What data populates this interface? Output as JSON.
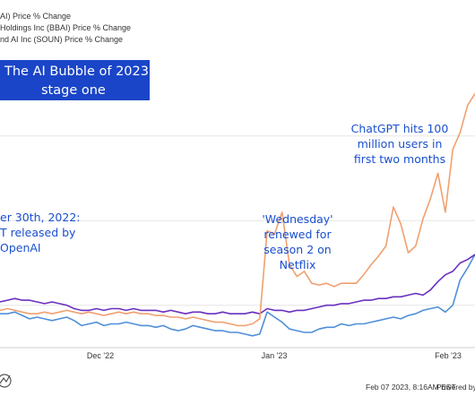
{
  "chart_data": {
    "type": "line",
    "title_box": [
      "The AI Bubble of 2023",
      "stage one"
    ],
    "x_ticks": [
      "Dec '22",
      "Jan '23",
      "Feb '23"
    ],
    "ylim": [
      -25,
      130
    ],
    "grid": "horizontal",
    "series": [
      {
        "name": "AI) Price % Change",
        "color": "#4f8fd8",
        "values": [
          [
            0,
            -5
          ],
          [
            5,
            -5
          ],
          [
            10,
            -4
          ],
          [
            15,
            -6
          ],
          [
            20,
            -8
          ],
          [
            25,
            -7
          ],
          [
            30,
            -8
          ],
          [
            35,
            -9
          ],
          [
            40,
            -8
          ],
          [
            45,
            -7
          ],
          [
            50,
            -9
          ],
          [
            55,
            -12
          ],
          [
            60,
            -11
          ],
          [
            65,
            -10
          ],
          [
            70,
            -12
          ],
          [
            75,
            -11
          ],
          [
            80,
            -11
          ],
          [
            85,
            -10
          ],
          [
            90,
            -11
          ],
          [
            95,
            -12
          ],
          [
            100,
            -12
          ],
          [
            105,
            -13
          ],
          [
            110,
            -12
          ],
          [
            115,
            -14
          ],
          [
            120,
            -15
          ],
          [
            125,
            -14
          ],
          [
            130,
            -12
          ],
          [
            135,
            -13
          ],
          [
            140,
            -14
          ],
          [
            145,
            -15
          ],
          [
            150,
            -15
          ],
          [
            155,
            -16
          ],
          [
            160,
            -16
          ],
          [
            165,
            -17
          ],
          [
            170,
            -18
          ],
          [
            175,
            -17
          ],
          [
            180,
            -4
          ],
          [
            185,
            -7
          ],
          [
            190,
            -10
          ],
          [
            195,
            -14
          ],
          [
            200,
            -15
          ],
          [
            205,
            -16
          ],
          [
            210,
            -16
          ],
          [
            215,
            -14
          ],
          [
            220,
            -13
          ],
          [
            225,
            -13
          ],
          [
            230,
            -11
          ],
          [
            235,
            -12
          ],
          [
            240,
            -11
          ],
          [
            245,
            -11
          ],
          [
            250,
            -10
          ],
          [
            255,
            -9
          ],
          [
            260,
            -8
          ],
          [
            265,
            -7
          ],
          [
            270,
            -8
          ],
          [
            275,
            -6
          ],
          [
            280,
            -5
          ],
          [
            285,
            -3
          ],
          [
            290,
            -2
          ],
          [
            295,
            -1
          ],
          [
            300,
            -4
          ],
          [
            305,
            0
          ],
          [
            310,
            15
          ],
          [
            315,
            22
          ],
          [
            320,
            30
          ]
        ]
      },
      {
        "name": "Holdings Inc (BBAI) Price % Change",
        "color": "#6a2fc0",
        "values": [
          [
            0,
            2
          ],
          [
            5,
            3
          ],
          [
            10,
            4
          ],
          [
            15,
            3
          ],
          [
            20,
            3
          ],
          [
            25,
            2
          ],
          [
            30,
            1
          ],
          [
            35,
            2
          ],
          [
            40,
            1
          ],
          [
            45,
            0
          ],
          [
            50,
            -2
          ],
          [
            55,
            -3
          ],
          [
            60,
            -3
          ],
          [
            65,
            -2
          ],
          [
            70,
            -3
          ],
          [
            75,
            -2
          ],
          [
            80,
            -2
          ],
          [
            85,
            -3
          ],
          [
            90,
            -2
          ],
          [
            95,
            -3
          ],
          [
            100,
            -3
          ],
          [
            105,
            -3
          ],
          [
            110,
            -4
          ],
          [
            115,
            -3
          ],
          [
            120,
            -4
          ],
          [
            125,
            -5
          ],
          [
            130,
            -4
          ],
          [
            135,
            -4
          ],
          [
            140,
            -5
          ],
          [
            145,
            -5
          ],
          [
            150,
            -4
          ],
          [
            155,
            -5
          ],
          [
            160,
            -5
          ],
          [
            165,
            -5
          ],
          [
            170,
            -4
          ],
          [
            175,
            -5
          ],
          [
            180,
            -2
          ],
          [
            185,
            -3
          ],
          [
            190,
            -3
          ],
          [
            195,
            -4
          ],
          [
            200,
            -3
          ],
          [
            205,
            -3
          ],
          [
            210,
            -2
          ],
          [
            215,
            -1
          ],
          [
            220,
            0
          ],
          [
            225,
            0
          ],
          [
            230,
            1
          ],
          [
            235,
            1
          ],
          [
            240,
            2
          ],
          [
            245,
            3
          ],
          [
            250,
            3
          ],
          [
            255,
            4
          ],
          [
            260,
            4
          ],
          [
            265,
            5
          ],
          [
            270,
            5
          ],
          [
            275,
            6
          ],
          [
            280,
            7
          ],
          [
            285,
            6
          ],
          [
            290,
            9
          ],
          [
            295,
            14
          ],
          [
            300,
            18
          ],
          [
            305,
            20
          ],
          [
            310,
            25
          ],
          [
            315,
            27
          ],
          [
            320,
            30
          ]
        ]
      },
      {
        "name": "nd AI Inc (SOUN) Price % Change",
        "color": "#f0a070",
        "values": [
          [
            0,
            -3
          ],
          [
            5,
            -2
          ],
          [
            10,
            -3
          ],
          [
            15,
            -4
          ],
          [
            20,
            -5
          ],
          [
            25,
            -5
          ],
          [
            30,
            -4
          ],
          [
            35,
            -5
          ],
          [
            40,
            -4
          ],
          [
            45,
            -3
          ],
          [
            50,
            -4
          ],
          [
            55,
            -5
          ],
          [
            60,
            -4
          ],
          [
            65,
            -5
          ],
          [
            70,
            -6
          ],
          [
            75,
            -5
          ],
          [
            80,
            -4
          ],
          [
            85,
            -5
          ],
          [
            90,
            -4
          ],
          [
            95,
            -5
          ],
          [
            100,
            -5
          ],
          [
            105,
            -6
          ],
          [
            110,
            -6
          ],
          [
            115,
            -7
          ],
          [
            120,
            -7
          ],
          [
            125,
            -8
          ],
          [
            130,
            -7
          ],
          [
            135,
            -8
          ],
          [
            140,
            -9
          ],
          [
            145,
            -10
          ],
          [
            150,
            -10
          ],
          [
            155,
            -11
          ],
          [
            160,
            -12
          ],
          [
            165,
            -12
          ],
          [
            170,
            -11
          ],
          [
            175,
            -8
          ],
          [
            180,
            44
          ],
          [
            185,
            42
          ],
          [
            190,
            55
          ],
          [
            195,
            24
          ],
          [
            200,
            17
          ],
          [
            205,
            20
          ],
          [
            210,
            13
          ],
          [
            215,
            12
          ],
          [
            220,
            13
          ],
          [
            225,
            11
          ],
          [
            230,
            13
          ],
          [
            235,
            13
          ],
          [
            240,
            13
          ],
          [
            245,
            18
          ],
          [
            250,
            24
          ],
          [
            255,
            29
          ],
          [
            260,
            35
          ],
          [
            265,
            58
          ],
          [
            270,
            48
          ],
          [
            275,
            31
          ],
          [
            280,
            35
          ],
          [
            285,
            51
          ],
          [
            290,
            63
          ],
          [
            295,
            78
          ],
          [
            300,
            55
          ],
          [
            305,
            92
          ],
          [
            310,
            102
          ],
          [
            315,
            118
          ],
          [
            320,
            125
          ]
        ]
      }
    ]
  },
  "legend": [
    {
      "label": "AI) Price % Change",
      "color": "#4f8fd8"
    },
    {
      "label": "Holdings Inc (BBAI) Price % Change",
      "color": "#6a2fc0"
    },
    {
      "label": "nd AI Inc (SOUN) Price % Change",
      "color": "#f0a070"
    }
  ],
  "annotations": {
    "chatgpt_release": [
      "er 30th, 2022:",
      "T released by",
      "OpenAI"
    ],
    "wednesday": [
      "'Wednesday'",
      "renewed for",
      "season 2 on",
      "Netflix"
    ],
    "chatgpt_users": [
      "ChatGPT hits 100",
      "million users in",
      "first two months"
    ]
  },
  "footer": {
    "timestamp": "Feb 07 2023, 8:16AM EST.",
    "powered_by": "Powered by"
  },
  "colors": {
    "title_box_bg": "#1a45c8",
    "annotation": "#1a4fcf",
    "grid": "#e6e6e6"
  }
}
